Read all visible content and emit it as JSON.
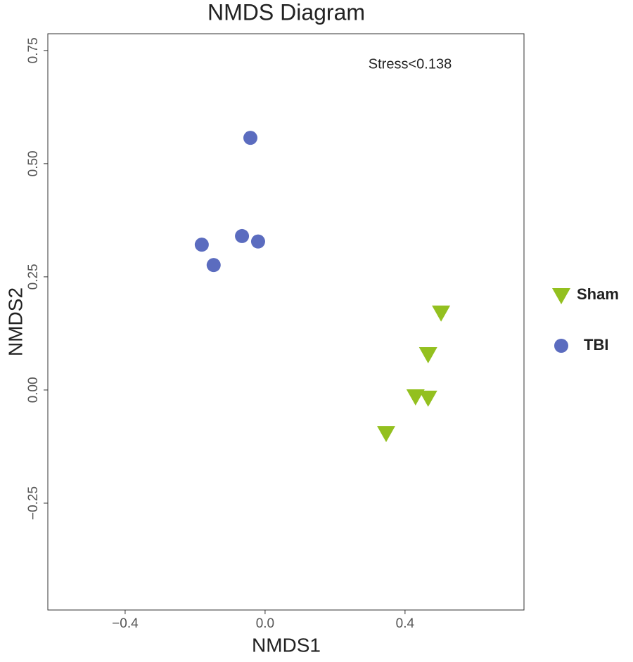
{
  "chart_data": {
    "type": "scatter",
    "title": "NMDS Diagram",
    "x_label": "NMDS1",
    "y_label": "NMDS2",
    "annotation": "Stress<0.138",
    "xlim": [
      -0.621,
      0.74
    ],
    "ylim": [
      -0.486,
      0.787
    ],
    "xticks": [
      {
        "value": -0.4,
        "label": "−0.4"
      },
      {
        "value": 0,
        "label": "0.0"
      },
      {
        "value": 0.4,
        "label": "0.4"
      }
    ],
    "yticks": [
      {
        "value": -0.25,
        "label": "−0.25"
      },
      {
        "value": 0,
        "label": "0.00"
      },
      {
        "value": 0.25,
        "label": "0.25"
      },
      {
        "value": 0.5,
        "label": "0.50"
      },
      {
        "value": 0.75,
        "label": "0.75"
      }
    ],
    "series": [
      {
        "name": "Sham",
        "color": "#93c01f",
        "marker": "triangle-down",
        "x": [
          0.503,
          0.466,
          0.43,
          0.466,
          0.346
        ],
        "values": [
          0.171,
          0.079,
          -0.014,
          -0.017,
          -0.095
        ]
      },
      {
        "name": "TBI",
        "color": "#5b6cbf",
        "marker": "circle",
        "x": [
          -0.042,
          -0.181,
          -0.147,
          -0.066,
          -0.02
        ],
        "values": [
          0.557,
          0.321,
          0.276,
          0.34,
          0.328
        ]
      }
    ]
  }
}
